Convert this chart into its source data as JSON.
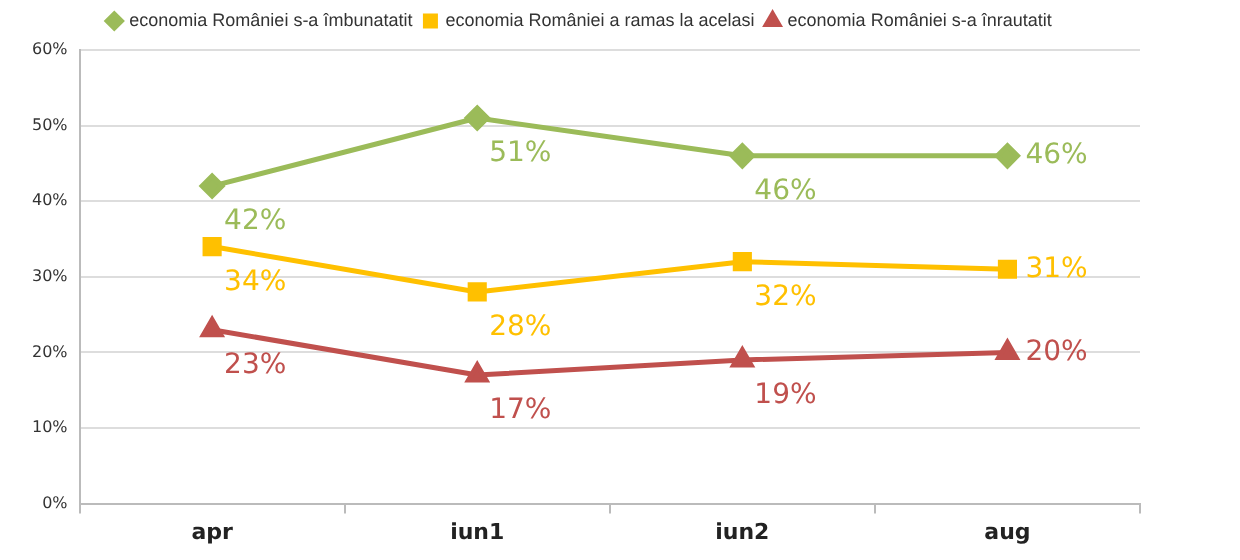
{
  "chart_data": {
    "type": "line",
    "categories": [
      "apr",
      "iun1",
      "iun2",
      "aug"
    ],
    "series": [
      {
        "name": "economia României s-a îmbunatatit",
        "color": "#9bbb59",
        "marker": "diamond",
        "values": [
          42,
          51,
          46,
          46
        ],
        "value_labels": [
          "42%",
          "51%",
          "46%",
          "46%"
        ]
      },
      {
        "name": "economia României a ramas la acelasi",
        "color": "#ffc000",
        "marker": "square",
        "values": [
          34,
          28,
          32,
          31
        ],
        "value_labels": [
          "34%",
          "28%",
          "32%",
          "31%"
        ]
      },
      {
        "name": "economia României s-a înrautatit",
        "color": "#c0504d",
        "marker": "triangle",
        "values": [
          23,
          17,
          19,
          20
        ],
        "value_labels": [
          "23%",
          "17%",
          "19%",
          "20%"
        ]
      }
    ],
    "ylim": [
      0,
      60
    ],
    "yticks": [
      {
        "value": 0,
        "label": "0%"
      },
      {
        "value": 10,
        "label": "10%"
      },
      {
        "value": 20,
        "label": "20%"
      },
      {
        "value": 30,
        "label": "30%"
      },
      {
        "value": 40,
        "label": "40%"
      },
      {
        "value": 50,
        "label": "50%"
      },
      {
        "value": 60,
        "label": "60%"
      }
    ],
    "grid": "y",
    "legend": "top"
  }
}
